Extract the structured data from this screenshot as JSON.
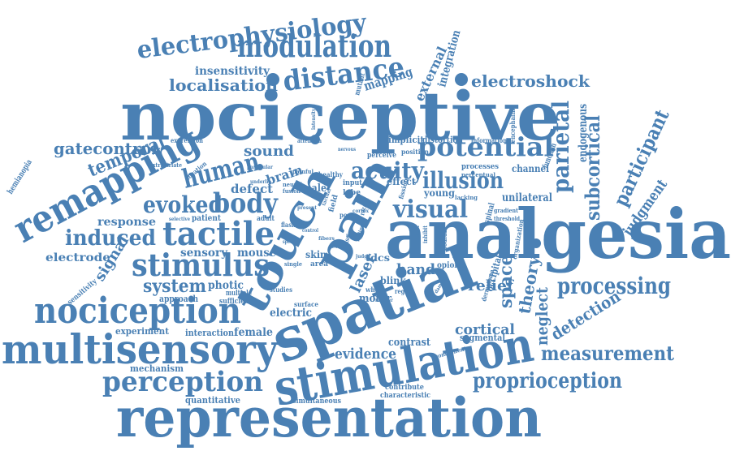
{
  "colors": {
    "word": "#4a80b4",
    "background": "#ffffff"
  },
  "words": {
    "nociceptive": "nociceptive",
    "analgesia": "analgesia",
    "spatial": "spatial",
    "representation": "representation",
    "stimulation": "stimulation",
    "multisensory": "multisensory",
    "nociception": "nociception",
    "touch": "touch",
    "pain": "pain",
    "remapping": "remapping",
    "tactile": "tactile",
    "stimulus": "stimulus",
    "modulation": "modulation",
    "electrophysiology": "electrophysiology",
    "distance": "distance",
    "potential": "potential",
    "perception": "perception",
    "human": "human",
    "body": "body",
    "evoked": "evoked",
    "induced": "induced",
    "visual": "visual",
    "illusion": "illusion",
    "acuity": "acuity",
    "parietal": "parietal",
    "subcortical": "subcortical",
    "participant": "participant",
    "processing": "processing",
    "measurement": "measurement",
    "proprioception": "proprioception",
    "electroshock": "electroshock",
    "localisation": "localisation",
    "gatecontrol": "gatecontrol",
    "temporal": "temporal",
    "system": "system",
    "space": "space",
    "theory": "theory",
    "neglect": "neglect",
    "detection": "detection",
    "cortical": "cortical",
    "hand": "hand",
    "relief": "relief",
    "laser": "laser",
    "evidence": "evidence",
    "sound": "sound",
    "response": "response",
    "electrode": "electrode",
    "signal": "signal",
    "mapping": "mapping",
    "insensitivity": "insensitivity",
    "external": "external",
    "integration": "integration",
    "judgment": "judgment",
    "endogenous": "endogenous",
    "brain": "brain",
    "defect": "defect",
    "sensory": "sensory",
    "mouse": "mouse",
    "female": "female",
    "electric": "electric",
    "approach": "approach",
    "photic": "photic",
    "interaction": "interaction",
    "experiment": "experiment",
    "mechanism": "mechanism",
    "quantitative": "quantitative",
    "simultaneous": "simultaneous",
    "characteristic": "characteristic",
    "contribute": "contribute",
    "contrast": "contrast",
    "segmental": "segmental",
    "motor": "motor",
    "blink": "blink",
    "unilateral": "unilateral",
    "channel": "channel",
    "processes": "processes",
    "young": "young",
    "effect": "effect",
    "implicit": "implicit",
    "distortion": "distortion",
    "perceive": "perceive",
    "position": "position",
    "input": "input",
    "lobe": "lobe",
    "male": "male",
    "healthy": "healthy",
    "patient": "patient",
    "adult": "adult",
    "multiple": "multiple",
    "sufficient": "sufficient",
    "studies": "studies",
    "surface": "surface",
    "skin": "skin",
    "area": "area",
    "tdcs": "tdcs",
    "whole": "whole",
    "region": "region",
    "opioids": "opioids",
    "occipital": "occipital",
    "dermatome": "dermatome",
    "sodium": "sodium",
    "antagonist": "antagonist",
    "organization": "organization",
    "spinal": "spinal",
    "lacking": "lacking",
    "gradient": "gradient",
    "threshold": "threshold",
    "function": "function",
    "perceptual": "perceptual",
    "information": "information",
    "encephalin": "encephalin",
    "expression": "expression",
    "hemianopia": "hemianopia",
    "sensitivity": "sensitivity",
    "extrastriate": "extrastriate",
    "location": "location",
    "selective": "selective",
    "painful": "painful",
    "neural": "neural",
    "fusion": "fusion",
    "attention": "attention",
    "particular": "particular",
    "intensity": "intensity",
    "mutant": "mutant",
    "nervous": "nervous",
    "field": "field",
    "poor": "poor",
    "recent": "recent",
    "fission": "fission",
    "flashes": "flashes",
    "specific": "specific",
    "control": "control",
    "single": "single",
    "component": "component",
    "damage": "damage",
    "result": "result",
    "inhibit": "inhibit",
    "level": "level",
    "present": "present",
    "model": "model",
    "feeling": "feeling",
    "sense": "sense",
    "marker": "marker",
    "underlie": "underlie",
    "electrical": "electrical",
    "judge": "judge",
    "tactual": "tactual",
    "cortex": "cortex",
    "fibers": "fibers"
  }
}
